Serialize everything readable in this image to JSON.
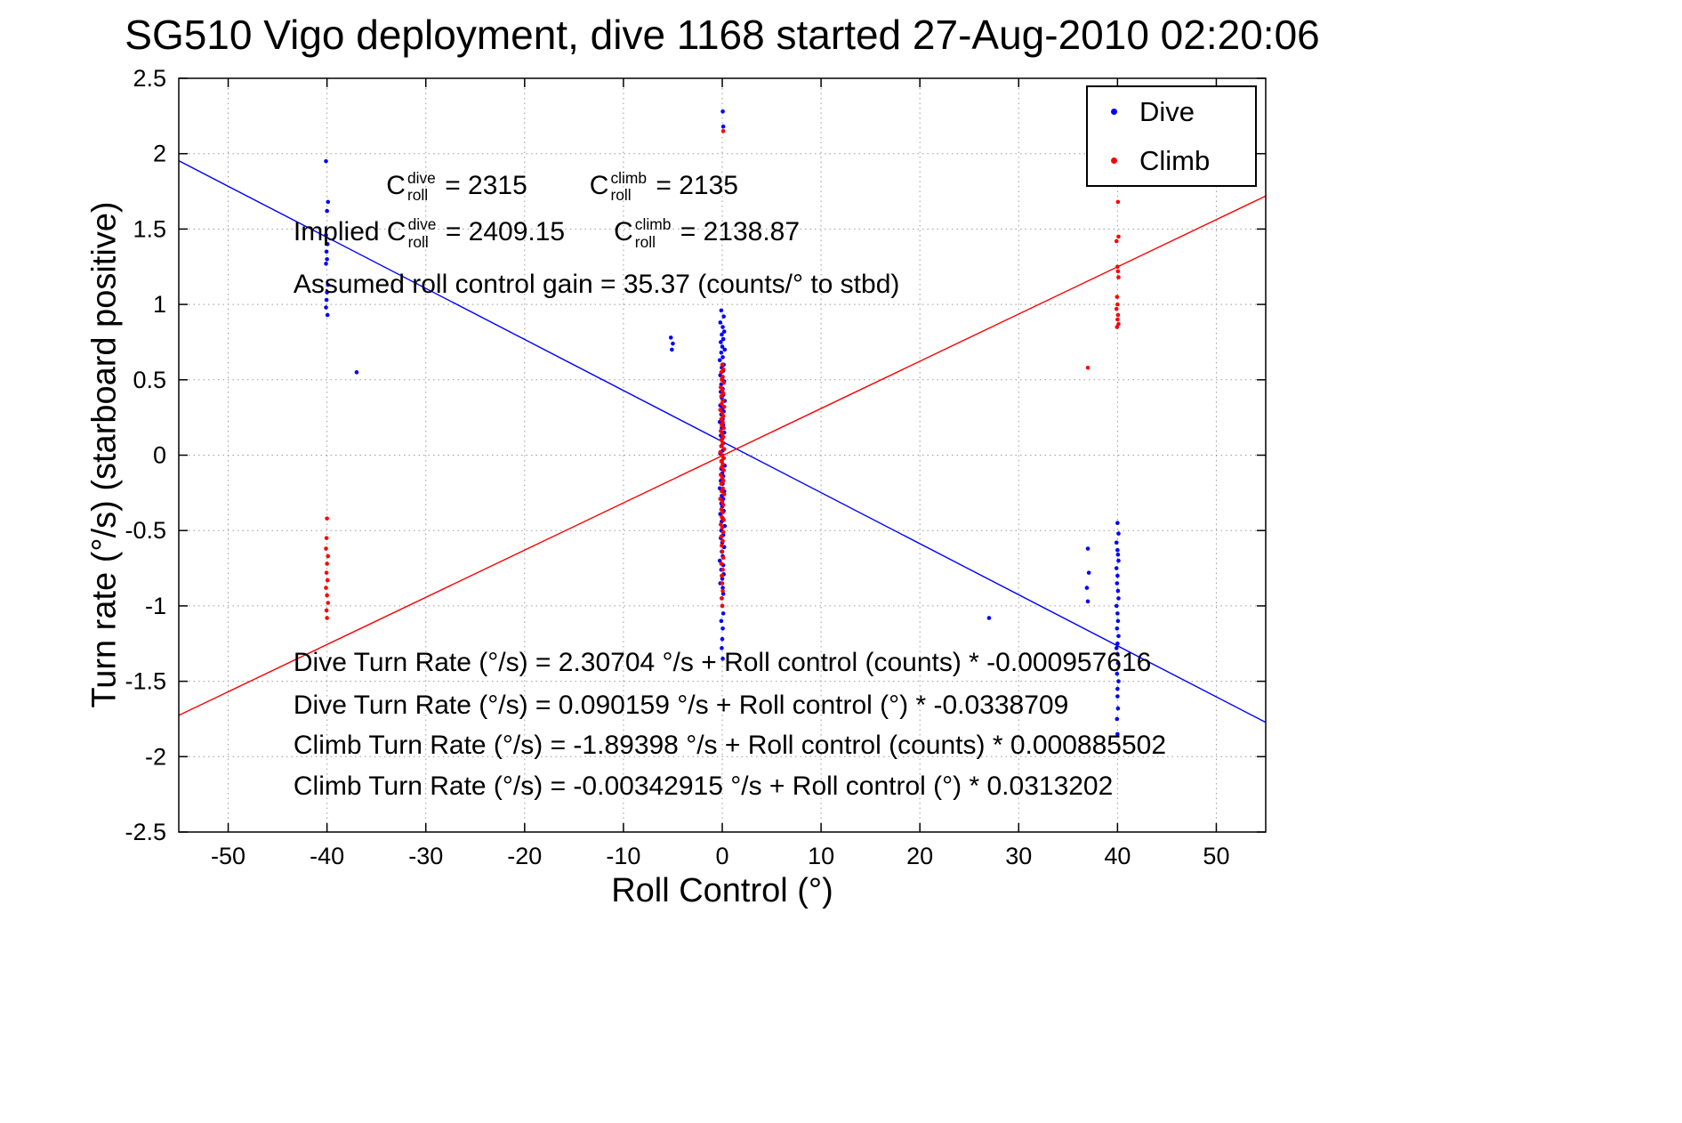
{
  "chart_data": {
    "type": "scatter",
    "title": "SG510 Vigo deployment, dive 1168 started 27-Aug-2010 02:20:06",
    "xlabel": "Roll Control (°)",
    "ylabel": "Turn rate (°/s) (starboard positive)",
    "xlim": [
      -55,
      55
    ],
    "ylim": [
      -2.5,
      2.5
    ],
    "xticks": [
      -50,
      -40,
      -30,
      -20,
      -10,
      0,
      10,
      20,
      30,
      40,
      50
    ],
    "xtick_labels": [
      "-50",
      "-40",
      "-30",
      "-20",
      "-10",
      "0",
      "10",
      "20",
      "30",
      "40",
      "50"
    ],
    "yticks": [
      -2.5,
      -2,
      -1.5,
      -1,
      -0.5,
      0,
      0.5,
      1,
      1.5,
      2,
      2.5
    ],
    "ytick_labels": [
      "-2.5",
      "-2",
      "-1.5",
      "-1",
      "-0.5",
      "0",
      "0.5",
      "1",
      "1.5",
      "2",
      "2.5"
    ],
    "grid": true,
    "grid_color": "#9a9a9a",
    "axis_color": "#000000",
    "legend": {
      "position": "top-right",
      "entries": [
        {
          "label": "Dive",
          "color": "#0000ff"
        },
        {
          "label": "Climb",
          "color": "#ff0000"
        }
      ]
    },
    "series": [
      {
        "name": "Dive",
        "color": "#0000ff",
        "marker": "point",
        "points": [
          [
            -40.1,
            1.95
          ],
          [
            -39.9,
            1.68
          ],
          [
            -40,
            1.62
          ],
          [
            -40.1,
            1.46
          ],
          [
            -39.95,
            1.4
          ],
          [
            -40.05,
            1.35
          ],
          [
            -40,
            1.3
          ],
          [
            -40.1,
            1.27
          ],
          [
            -39.9,
            1.13
          ],
          [
            -40,
            1.08
          ],
          [
            -40.05,
            1.03
          ],
          [
            -40.1,
            0.98
          ],
          [
            -39.95,
            0.93
          ],
          [
            -37,
            0.55
          ],
          [
            -5.2,
            0.78
          ],
          [
            -5,
            0.74
          ],
          [
            -5.1,
            0.7
          ],
          [
            0.05,
            2.28
          ],
          [
            0.1,
            2.18
          ],
          [
            -0.1,
            0.96
          ],
          [
            0.15,
            0.92
          ],
          [
            -0.2,
            0.88
          ],
          [
            0.05,
            0.85
          ],
          [
            0.2,
            0.82
          ],
          [
            -0.05,
            0.8
          ],
          [
            0.1,
            0.77
          ],
          [
            -0.15,
            0.75
          ],
          [
            0,
            0.72
          ],
          [
            0.25,
            0.7
          ],
          [
            -0.1,
            0.68
          ],
          [
            0.05,
            0.65
          ],
          [
            -0.25,
            0.63
          ],
          [
            0.15,
            0.6
          ],
          [
            -0.05,
            0.58
          ],
          [
            0.1,
            0.56
          ],
          [
            -0.2,
            0.53
          ],
          [
            0,
            0.51
          ],
          [
            0.2,
            0.49
          ],
          [
            -0.1,
            0.47
          ],
          [
            0.05,
            0.44
          ],
          [
            -0.15,
            0.42
          ],
          [
            0.1,
            0.4
          ],
          [
            -0.05,
            0.38
          ],
          [
            0.25,
            0.36
          ],
          [
            -0.2,
            0.33
          ],
          [
            0,
            0.31
          ],
          [
            0.15,
            0.29
          ],
          [
            -0.1,
            0.27
          ],
          [
            0.05,
            0.24
          ],
          [
            -0.25,
            0.22
          ],
          [
            0.1,
            0.2
          ],
          [
            -0.05,
            0.18
          ],
          [
            0.2,
            0.15
          ],
          [
            -0.15,
            0.13
          ],
          [
            0,
            0.11
          ],
          [
            0.1,
            0.08
          ],
          [
            -0.1,
            0.06
          ],
          [
            0.05,
            0.03
          ],
          [
            -0.2,
            0.01
          ],
          [
            0.15,
            -0.02
          ],
          [
            -0.05,
            -0.04
          ],
          [
            0.25,
            -0.07
          ],
          [
            -0.1,
            -0.09
          ],
          [
            0,
            -0.12
          ],
          [
            0.1,
            -0.14
          ],
          [
            -0.15,
            -0.17
          ],
          [
            0.05,
            -0.19
          ],
          [
            -0.25,
            -0.22
          ],
          [
            0.2,
            -0.24
          ],
          [
            -0.05,
            -0.27
          ],
          [
            0.1,
            -0.29
          ],
          [
            -0.1,
            -0.32
          ],
          [
            0,
            -0.34
          ],
          [
            0.15,
            -0.37
          ],
          [
            -0.2,
            -0.39
          ],
          [
            0.05,
            -0.42
          ],
          [
            -0.05,
            -0.44
          ],
          [
            0.25,
            -0.47
          ],
          [
            -0.1,
            -0.5
          ],
          [
            0.1,
            -0.53
          ],
          [
            -0.15,
            -0.55
          ],
          [
            0,
            -0.58
          ],
          [
            0.2,
            -0.61
          ],
          [
            -0.05,
            -0.64
          ],
          [
            0.05,
            -0.67
          ],
          [
            -0.25,
            -0.7
          ],
          [
            0.1,
            -0.73
          ],
          [
            -0.1,
            -0.76
          ],
          [
            0.15,
            -0.79
          ],
          [
            0,
            -0.82
          ],
          [
            -0.2,
            -0.85
          ],
          [
            0.05,
            -0.88
          ],
          [
            0.1,
            -0.92
          ],
          [
            -0.05,
            -0.95
          ],
          [
            0,
            -1.0
          ],
          [
            0.1,
            -1.05
          ],
          [
            -0.1,
            -1.1
          ],
          [
            0.05,
            -1.15
          ],
          [
            0,
            -1.22
          ],
          [
            -0.05,
            -1.28
          ],
          [
            0.05,
            -1.35
          ],
          [
            27,
            -1.08
          ],
          [
            37,
            -0.62
          ],
          [
            37.1,
            -0.78
          ],
          [
            36.9,
            -0.88
          ],
          [
            37,
            -0.97
          ],
          [
            40,
            -0.45
          ],
          [
            40.1,
            -0.52
          ],
          [
            39.9,
            -0.58
          ],
          [
            40,
            -0.63
          ],
          [
            40.05,
            -0.66
          ],
          [
            40.1,
            -0.7
          ],
          [
            39.9,
            -0.75
          ],
          [
            40,
            -0.8
          ],
          [
            39.95,
            -0.85
          ],
          [
            40.05,
            -0.9
          ],
          [
            40.1,
            -0.95
          ],
          [
            39.9,
            -1.0
          ],
          [
            40,
            -1.05
          ],
          [
            40.05,
            -1.1
          ],
          [
            39.95,
            -1.15
          ],
          [
            40.1,
            -1.2
          ],
          [
            40,
            -1.25
          ],
          [
            39.9,
            -1.28
          ],
          [
            40,
            -1.32
          ],
          [
            40.05,
            -1.38
          ],
          [
            39.95,
            -1.45
          ],
          [
            40.1,
            -1.5
          ],
          [
            40,
            -1.55
          ],
          [
            40,
            -1.6
          ],
          [
            40.05,
            -1.68
          ],
          [
            39.95,
            -1.75
          ],
          [
            40,
            -1.85
          ]
        ]
      },
      {
        "name": "Climb",
        "color": "#ff0000",
        "marker": "point",
        "points": [
          [
            -40,
            -0.42
          ],
          [
            -40.05,
            -0.55
          ],
          [
            -40.1,
            -0.62
          ],
          [
            -39.9,
            -0.67
          ],
          [
            -40,
            -0.72
          ],
          [
            -40.05,
            -0.78
          ],
          [
            -39.95,
            -0.83
          ],
          [
            -40.1,
            -0.88
          ],
          [
            -40,
            -0.93
          ],
          [
            -39.9,
            -0.98
          ],
          [
            -40.05,
            -1.03
          ],
          [
            -40,
            -1.08
          ],
          [
            0.1,
            2.15
          ],
          [
            0,
            0.6
          ],
          [
            0.1,
            0.57
          ],
          [
            -0.1,
            0.55
          ],
          [
            0.05,
            0.52
          ],
          [
            -0.05,
            0.5
          ],
          [
            0.15,
            0.48
          ],
          [
            -0.15,
            0.45
          ],
          [
            0,
            0.43
          ],
          [
            0.1,
            0.41
          ],
          [
            -0.1,
            0.39
          ],
          [
            0.05,
            0.36
          ],
          [
            -0.05,
            0.34
          ],
          [
            0.2,
            0.32
          ],
          [
            -0.2,
            0.3
          ],
          [
            0,
            0.28
          ],
          [
            0.1,
            0.26
          ],
          [
            -0.1,
            0.24
          ],
          [
            0.05,
            0.22
          ],
          [
            -0.05,
            0.2
          ],
          [
            0.15,
            0.18
          ],
          [
            -0.15,
            0.16
          ],
          [
            0,
            0.14
          ],
          [
            0.1,
            0.12
          ],
          [
            -0.1,
            0.1
          ],
          [
            0.05,
            0.08
          ],
          [
            -0.05,
            0.06
          ],
          [
            0.2,
            0.04
          ],
          [
            -0.2,
            0.02
          ],
          [
            0,
            0.0
          ],
          [
            0.1,
            -0.02
          ],
          [
            -0.1,
            -0.04
          ],
          [
            0.05,
            -0.06
          ],
          [
            -0.05,
            -0.08
          ],
          [
            0.15,
            -0.1
          ],
          [
            -0.15,
            -0.13
          ],
          [
            0,
            -0.15
          ],
          [
            0.1,
            -0.17
          ],
          [
            -0.1,
            -0.19
          ],
          [
            0.05,
            -0.22
          ],
          [
            -0.05,
            -0.24
          ],
          [
            0.2,
            -0.26
          ],
          [
            -0.2,
            -0.29
          ],
          [
            0,
            -0.31
          ],
          [
            0.1,
            -0.33
          ],
          [
            -0.1,
            -0.36
          ],
          [
            0.05,
            -0.38
          ],
          [
            -0.05,
            -0.41
          ],
          [
            0.15,
            -0.43
          ],
          [
            -0.15,
            -0.46
          ],
          [
            0,
            -0.48
          ],
          [
            0.1,
            -0.51
          ],
          [
            -0.1,
            -0.54
          ],
          [
            0.05,
            -0.57
          ],
          [
            -0.05,
            -0.6
          ],
          [
            0,
            -0.64
          ],
          [
            0.1,
            -0.68
          ],
          [
            -0.1,
            -0.72
          ],
          [
            0.05,
            -0.76
          ],
          [
            -0.05,
            -0.8
          ],
          [
            0,
            -0.85
          ],
          [
            0.05,
            -0.9
          ],
          [
            -0.05,
            -0.95
          ],
          [
            0,
            -1.0
          ],
          [
            37,
            0.58
          ],
          [
            40,
            2.28
          ],
          [
            40.05,
            1.68
          ],
          [
            40.1,
            1.45
          ],
          [
            39.9,
            1.42
          ],
          [
            40,
            1.25
          ],
          [
            40.05,
            1.22
          ],
          [
            40.1,
            1.18
          ],
          [
            39.95,
            1.05
          ],
          [
            40,
            1.0
          ],
          [
            39.9,
            0.97
          ],
          [
            40.05,
            0.93
          ],
          [
            40,
            0.9
          ],
          [
            40.1,
            0.87
          ],
          [
            39.95,
            0.85
          ]
        ]
      }
    ],
    "fit_lines": [
      {
        "name": "dive-fit",
        "color": "#0000ff",
        "intercept": 0.090159,
        "slope": -0.0338709
      },
      {
        "name": "climb-fit",
        "color": "#ff0000",
        "intercept": -0.00342915,
        "slope": 0.0313202
      }
    ],
    "annotations": [
      {
        "name": "croll-values",
        "x": -34,
        "y": 1.78,
        "tokens": [
          {
            "t": "C"
          },
          {
            "ss": {
              "sup": "dive",
              "sub": "roll"
            }
          },
          {
            "t": " = 2315"
          },
          {
            "gap": 70
          },
          {
            "t": "C"
          },
          {
            "ss": {
              "sup": "climb",
              "sub": "roll"
            }
          },
          {
            "t": " = 2135"
          }
        ]
      },
      {
        "name": "implied-croll-values",
        "x": -43.4,
        "y": 1.47,
        "tokens": [
          {
            "t": "Implied C"
          },
          {
            "ss": {
              "sup": "dive",
              "sub": "roll"
            }
          },
          {
            "t": " = 2409.15"
          },
          {
            "gap": 55
          },
          {
            "t": "C"
          },
          {
            "ss": {
              "sup": "climb",
              "sub": "roll"
            }
          },
          {
            "t": " = 2138.87"
          }
        ]
      },
      {
        "name": "assumed-gain",
        "x": -43.4,
        "y": 1.13,
        "tokens": [
          {
            "t": "Assumed roll control gain = 35.37 (counts/° to stbd)"
          }
        ]
      },
      {
        "name": "dive-fit-counts",
        "x": -43.4,
        "y": -1.38,
        "tokens": [
          {
            "t": "Dive Turn Rate (°/s) = 2.30704 °/s + Roll control (counts) * -0.000957616"
          }
        ]
      },
      {
        "name": "dive-fit-degrees",
        "x": -43.4,
        "y": -1.66,
        "tokens": [
          {
            "t": "Dive Turn Rate (°/s) = 0.090159 °/s + Roll control (°) * -0.0338709"
          }
        ]
      },
      {
        "name": "climb-fit-counts",
        "x": -43.4,
        "y": -1.93,
        "tokens": [
          {
            "t": "Climb Turn Rate (°/s) = -1.89398 °/s + Roll control (counts) * 0.000885502"
          }
        ]
      },
      {
        "name": "climb-fit-degrees",
        "x": -43.4,
        "y": -2.2,
        "tokens": [
          {
            "t": "Climb Turn Rate (°/s) = -0.00342915 °/s + Roll control (°) * 0.0313202"
          }
        ]
      }
    ]
  }
}
